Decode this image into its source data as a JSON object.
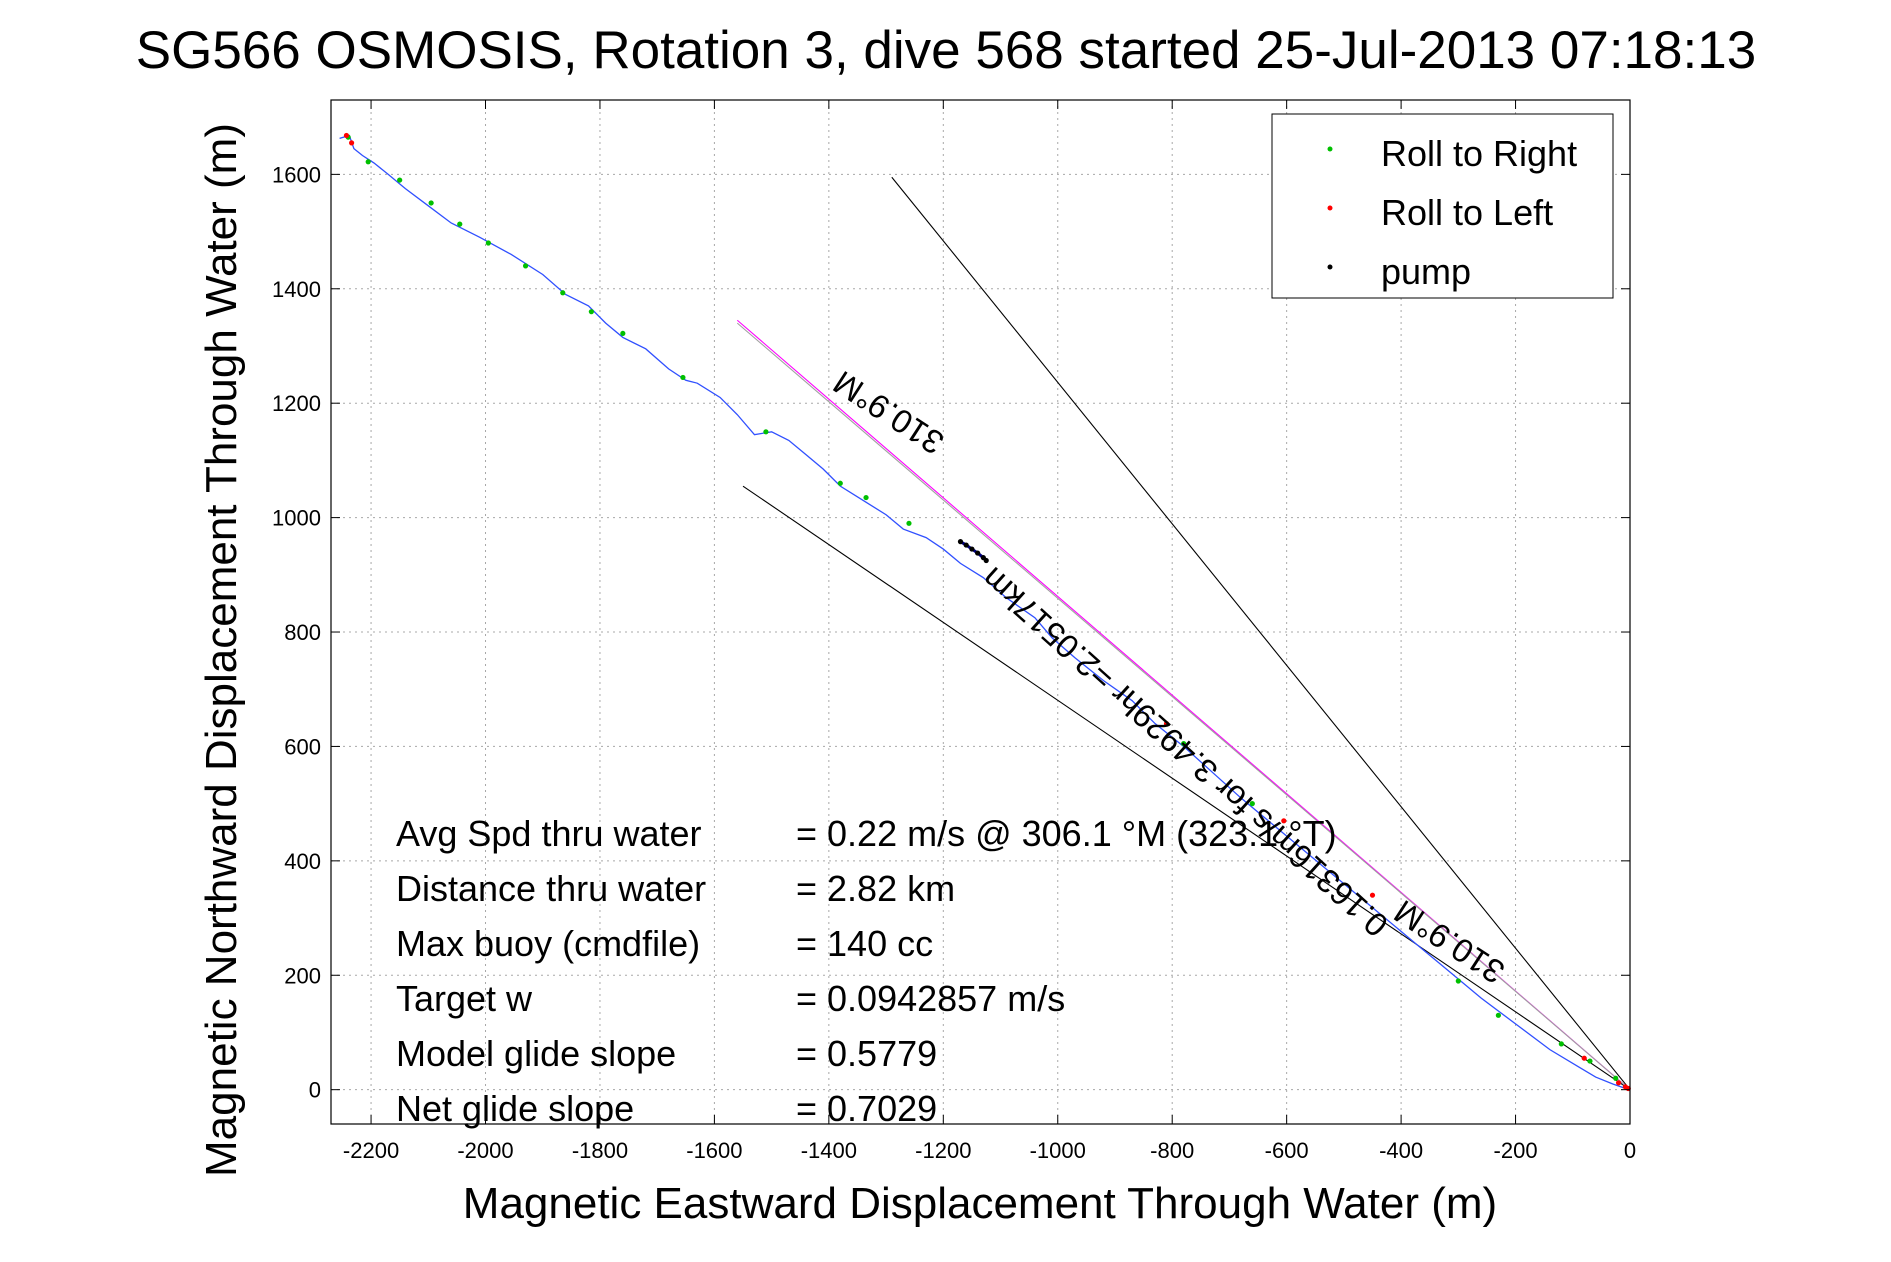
{
  "chart_data": {
    "type": "scatter",
    "title": "SG566 OSMOSIS, Rotation 3, dive 568 started 25-Jul-2013 07:18:13",
    "xlabel": "Magnetic Eastward Displacement Through Water (m)",
    "ylabel": "Magnetic Northward Displacement Through Water (m)",
    "xlim": [
      -2270,
      0
    ],
    "ylim": [
      -60,
      1730
    ],
    "xticks": [
      -2200,
      -2000,
      -1800,
      -1600,
      -1400,
      -1200,
      -1000,
      -800,
      -600,
      -400,
      -200,
      0
    ],
    "yticks": [
      0,
      200,
      400,
      600,
      800,
      1000,
      1200,
      1400,
      1600
    ],
    "grid": true,
    "legend_position": "top-right",
    "legend": [
      {
        "label": "Roll to Right",
        "color": "#00c000"
      },
      {
        "label": "Roll to Left",
        "color": "#ff0000"
      },
      {
        "label": "pump",
        "color": "#000000"
      }
    ],
    "track": {
      "name": "track",
      "color": "#3050ff",
      "x": [
        -2255,
        -2238,
        -2230,
        -2215,
        -2195,
        -2170,
        -2140,
        -2100,
        -2060,
        -2010,
        -1955,
        -1900,
        -1860,
        -1820,
        -1790,
        -1760,
        -1720,
        -1680,
        -1650,
        -1630,
        -1590,
        -1560,
        -1530,
        -1500,
        -1470,
        -1440,
        -1410,
        -1380,
        -1340,
        -1300,
        -1270,
        -1230,
        -1200,
        -1170,
        -1130,
        -1090,
        -1040,
        -1010,
        -970,
        -920,
        -870,
        -830,
        -780,
        -730,
        -680,
        -620,
        -560,
        -500,
        -440,
        -380,
        -320,
        -260,
        -200,
        -140,
        -90,
        -60,
        -30,
        -10,
        0
      ],
      "y": [
        1663,
        1668,
        1645,
        1633,
        1620,
        1600,
        1575,
        1545,
        1515,
        1490,
        1460,
        1425,
        1390,
        1370,
        1340,
        1315,
        1295,
        1260,
        1240,
        1235,
        1210,
        1180,
        1145,
        1150,
        1135,
        1110,
        1085,
        1055,
        1030,
        1005,
        980,
        965,
        945,
        920,
        895,
        860,
        825,
        790,
        755,
        715,
        680,
        640,
        600,
        555,
        510,
        460,
        410,
        360,
        310,
        260,
        210,
        160,
        115,
        70,
        40,
        22,
        10,
        3,
        0
      ]
    },
    "markers": {
      "roll_right": {
        "x": [
          -2240,
          -2205,
          -2150,
          -2095,
          -2045,
          -1995,
          -1930,
          -1865,
          -1815,
          -1760,
          -1655,
          -1510,
          -1380,
          -1335,
          -1260,
          -780,
          -660,
          -300,
          -230,
          -120,
          -70,
          -25
        ],
        "y": [
          1665,
          1622,
          1590,
          1550,
          1513,
          1480,
          1440,
          1393,
          1360,
          1322,
          1245,
          1150,
          1060,
          1035,
          990,
          605,
          500,
          190,
          130,
          80,
          50,
          20
        ]
      },
      "roll_left": {
        "x": [
          -2243,
          -2234,
          -810,
          -605,
          -450,
          -80,
          -20,
          -8,
          -3
        ],
        "y": [
          1668,
          1655,
          640,
          470,
          340,
          55,
          12,
          5,
          2
        ]
      },
      "pump": {
        "x": [
          -1170,
          -1160,
          -1150,
          -1140,
          -1130,
          -1125
        ],
        "y": [
          958,
          952,
          945,
          938,
          930,
          925
        ]
      }
    },
    "reference_lines": [
      {
        "kind": "heading",
        "color": "#000000",
        "x": [
          -1550,
          0
        ],
        "y": [
          1055,
          0
        ]
      },
      {
        "kind": "heading",
        "color": "#000000",
        "x": [
          -1290,
          0
        ],
        "y": [
          1595,
          0
        ]
      },
      {
        "kind": "heading",
        "color": "#ff00ff",
        "x": [
          -1560,
          0
        ],
        "y": [
          1345,
          0
        ]
      },
      {
        "kind": "heading",
        "color": "#a0a0a0",
        "x": [
          -1560,
          0
        ],
        "y": [
          1340,
          0
        ]
      }
    ],
    "annotations": [
      {
        "text": "310.9°M",
        "x": -1285,
        "y": 1200,
        "rotation": 213
      },
      {
        "text": "0.16316m/s for 3.4929hr =2.0517km",
        "x": -765,
        "y": 605,
        "rotation": 222
      },
      {
        "text": "310.9°M",
        "x": -305,
        "y": 275,
        "rotation": 213
      }
    ],
    "stats": [
      {
        "label": "Avg Spd thru water",
        "value": "=  0.22 m/s @ 306.1 °M (323.1 °T)"
      },
      {
        "label": "Distance thru water",
        "value": "=  2.82 km"
      },
      {
        "label": "Max buoy (cmdfile)",
        "value": "= 140 cc"
      },
      {
        "label": "Target w",
        "value": "= 0.0942857 m/s"
      },
      {
        "label": "Model glide slope",
        "value": "= 0.5779"
      },
      {
        "label": "Net glide slope",
        "value": "= 0.7029"
      }
    ]
  }
}
